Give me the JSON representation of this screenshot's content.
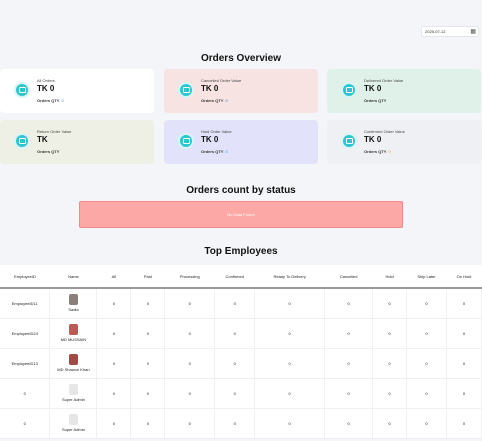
{
  "date_filter": {
    "value": "2025-07-12",
    "icon": "calendar-icon"
  },
  "orders_overview": {
    "title": "Orders Overview",
    "cards": [
      {
        "label": "All Orders",
        "value": "TK 0",
        "qty_label": "Orders QTY",
        "qty": "0",
        "bg": "#ffffff",
        "qty_color": "#3a8fd9"
      },
      {
        "label": "Cancelled Order Value",
        "value": "TK 0",
        "qty_label": "Orders QTY",
        "qty": "0",
        "bg": "#f8e3e3",
        "qty_color": "#3a8fd9"
      },
      {
        "label": "Delivered Order Value",
        "value": "TK 0",
        "qty_label": "Orders QTY",
        "qty": "",
        "bg": "#e0f1e9",
        "qty_color": "#3a8fd9"
      },
      {
        "label": "Return Order Value",
        "value": "TK",
        "qty_label": "Orders QTY",
        "qty": "",
        "bg": "#eef0e5",
        "qty_color": "#3a8fd9"
      },
      {
        "label": "Hold Order Value",
        "value": "TK 0",
        "qty_label": "Orders QTY",
        "qty": "0",
        "bg": "#e2e3fa",
        "qty_color": "#3a8fd9"
      },
      {
        "label": "Confirmed Order Value",
        "value": "TK 0",
        "qty_label": "Orders QTY",
        "qty": "0",
        "bg": "#eef0f3",
        "qty_color": "#e5a820"
      }
    ]
  },
  "orders_count": {
    "title": "Orders count by status",
    "no_data": "No Data Found"
  },
  "top_employees": {
    "title": "Top Employees",
    "columns": [
      "EmployeeID",
      "Name",
      "All",
      "Paid",
      "Processing",
      "Confirmed",
      "Ready To Delivery",
      "Cancelled",
      "Hold",
      "Ship Later",
      "On Hold"
    ],
    "rows": [
      {
        "id": "EmployeeID11",
        "name": "Sadia",
        "avatar": "#8a7f7a",
        "values": [
          "0",
          "0",
          "0",
          "0",
          "0",
          "0",
          "0",
          "0",
          "0"
        ]
      },
      {
        "id": "EmployeeID24",
        "name": "MD MUSSAIN",
        "avatar": "#b85a55",
        "values": [
          "0",
          "0",
          "0",
          "0",
          "0",
          "0",
          "0",
          "0",
          "0"
        ]
      },
      {
        "id": "EmployeeID13",
        "name": "MD Shawon Khan",
        "avatar": "#a04a44",
        "values": [
          "0",
          "0",
          "0",
          "0",
          "0",
          "0",
          "0",
          "0",
          "0"
        ]
      },
      {
        "id": "0",
        "name": "Super Admin",
        "avatar": "#e6e6e6",
        "values": [
          "0",
          "0",
          "0",
          "0",
          "0",
          "0",
          "0",
          "0",
          "0"
        ]
      },
      {
        "id": "0",
        "name": "Super Admin",
        "avatar": "#e6e6e6",
        "values": [
          "0",
          "0",
          "0",
          "0",
          "0",
          "0",
          "0",
          "0",
          "0"
        ]
      }
    ]
  }
}
